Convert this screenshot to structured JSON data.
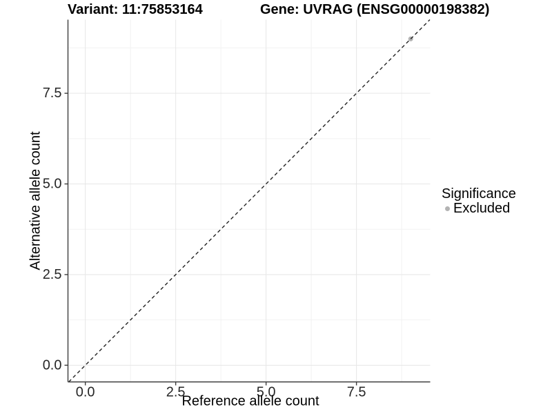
{
  "title": {
    "left": "Variant: 11:75853164",
    "right": "Gene: UVRAG (ENSG00000198382)"
  },
  "chart_data": {
    "type": "scatter",
    "xlabel": "Reference allele count",
    "ylabel": "Alternative allele count",
    "xlim": [
      -0.48,
      9.54
    ],
    "ylim": [
      -0.46,
      9.53
    ],
    "grid": true,
    "legend_position": "right",
    "x_ticks": {
      "values": [
        0,
        2.5,
        5,
        7.5
      ],
      "labels": [
        "0.0",
        "2.5",
        "5.0",
        "7.5"
      ]
    },
    "y_ticks": {
      "values": [
        0,
        2.5,
        5,
        7.5
      ],
      "labels": [
        "0.0",
        "2.5",
        "5.0",
        "7.5"
      ]
    },
    "x_minor": [
      1.25,
      3.75,
      6.25,
      8.75
    ],
    "y_minor": [
      1.25,
      3.75,
      6.25,
      8.75
    ],
    "reference_line": {
      "type": "abline",
      "slope": 1,
      "intercept": 0,
      "style": "dashed"
    },
    "series": [
      {
        "name": "Excluded",
        "color": "#b3b3b3",
        "points": [
          [
            9,
            9
          ]
        ]
      }
    ],
    "legend": {
      "title": "Significance",
      "items": [
        {
          "label": "Excluded",
          "color": "#b3b3b3",
          "marker": "circle"
        }
      ]
    }
  },
  "colors": {
    "background": "#ffffff",
    "grid_major": "#e6e6e6",
    "grid_minor": "#f2f2f2",
    "axis_line": "#3c3c3c",
    "tick_text": "#262626",
    "abline": "#222222",
    "point": "#b3b3b3"
  }
}
